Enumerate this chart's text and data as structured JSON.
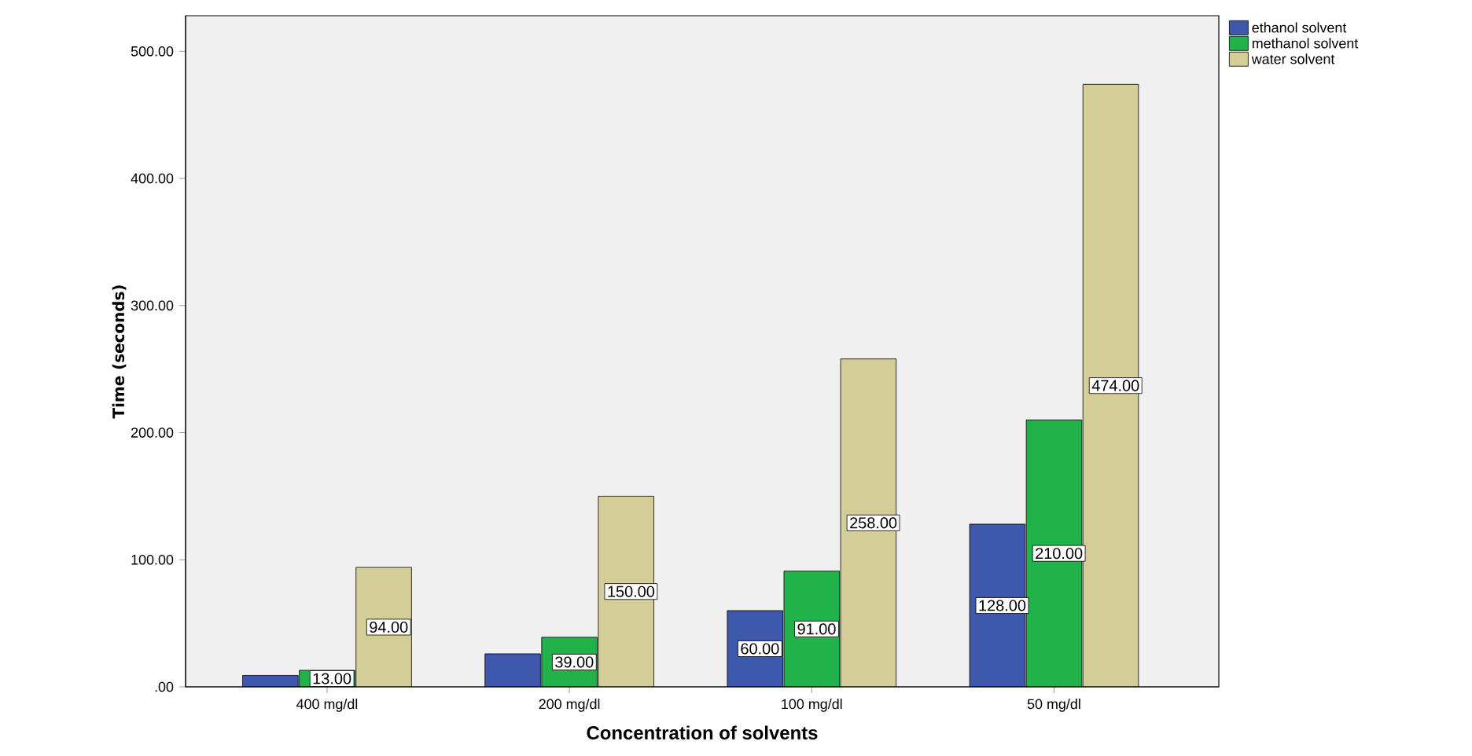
{
  "chart_data": {
    "type": "bar",
    "xlabel": "Concentration of solvents",
    "ylabel": "Time (seconds)",
    "categories": [
      "400 mg/dl",
      "200 mg/dl",
      "100 mg/dl",
      "50 mg/dl"
    ],
    "series": [
      {
        "name": "ethanol solvent",
        "color": "#3e58ac",
        "values": [
          9,
          26,
          60,
          128
        ],
        "value_labels": [
          null,
          null,
          "60.00",
          "128.00"
        ]
      },
      {
        "name": "methanol solvent",
        "color": "#21b24a",
        "values": [
          13,
          39,
          91,
          210
        ],
        "value_labels": [
          "13.00",
          "39.00",
          "91.00",
          "210.00"
        ]
      },
      {
        "name": "water solvent",
        "color": "#d3ce97",
        "values": [
          94,
          150,
          258,
          474
        ],
        "value_labels": [
          "94.00",
          "150.00",
          "258.00",
          "474.00"
        ]
      }
    ],
    "ylim": [
      0,
      528
    ],
    "yticks": [
      {
        "value": 0,
        "label": ".00"
      },
      {
        "value": 100,
        "label": "100.00"
      },
      {
        "value": 200,
        "label": "200.00"
      },
      {
        "value": 300,
        "label": "300.00"
      },
      {
        "value": 400,
        "label": "400.00"
      },
      {
        "value": 500,
        "label": "500.00"
      }
    ],
    "legend": "top right",
    "grid": false
  }
}
